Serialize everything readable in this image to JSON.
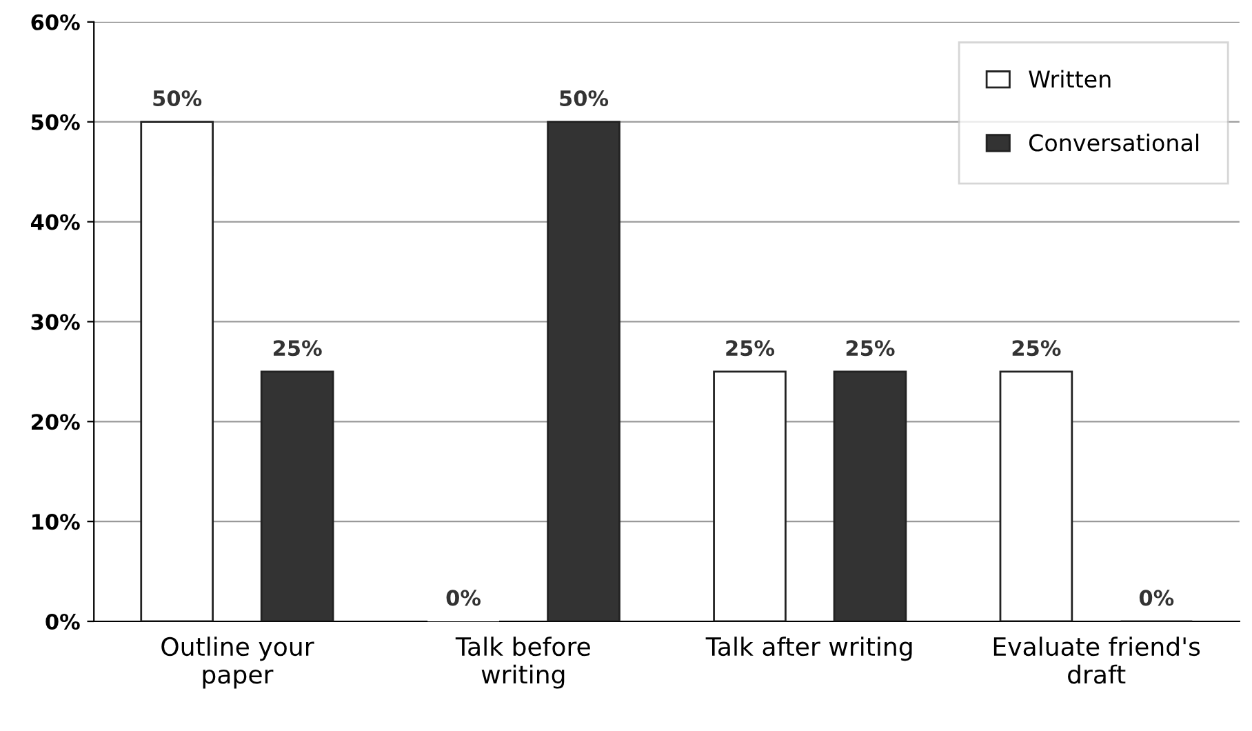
{
  "chart_data": {
    "type": "bar",
    "categories": [
      "Outline your\npaper",
      "Talk before\nwriting",
      "Talk after writing",
      "Evaluate friend's\ndraft"
    ],
    "series": [
      {
        "name": "Written",
        "color": "#ffffff",
        "values": [
          50,
          0,
          25,
          25
        ],
        "value_labels": [
          "50%",
          "0%",
          "25%",
          "25%"
        ]
      },
      {
        "name": "Conversational",
        "color": "#333333",
        "values": [
          25,
          50,
          25,
          0
        ],
        "value_labels": [
          "25%",
          "50%",
          "25%",
          "0%"
        ]
      }
    ],
    "ylim": [
      0,
      60
    ],
    "yticks": [
      {
        "value": 0,
        "label": "0%"
      },
      {
        "value": 10,
        "label": "10%"
      },
      {
        "value": 20,
        "label": "20%"
      },
      {
        "value": 30,
        "label": "30%"
      },
      {
        "value": 40,
        "label": "40%"
      },
      {
        "value": 50,
        "label": "50%"
      },
      {
        "value": 60,
        "label": "60%"
      }
    ],
    "grid": "y",
    "legend": "top right"
  }
}
